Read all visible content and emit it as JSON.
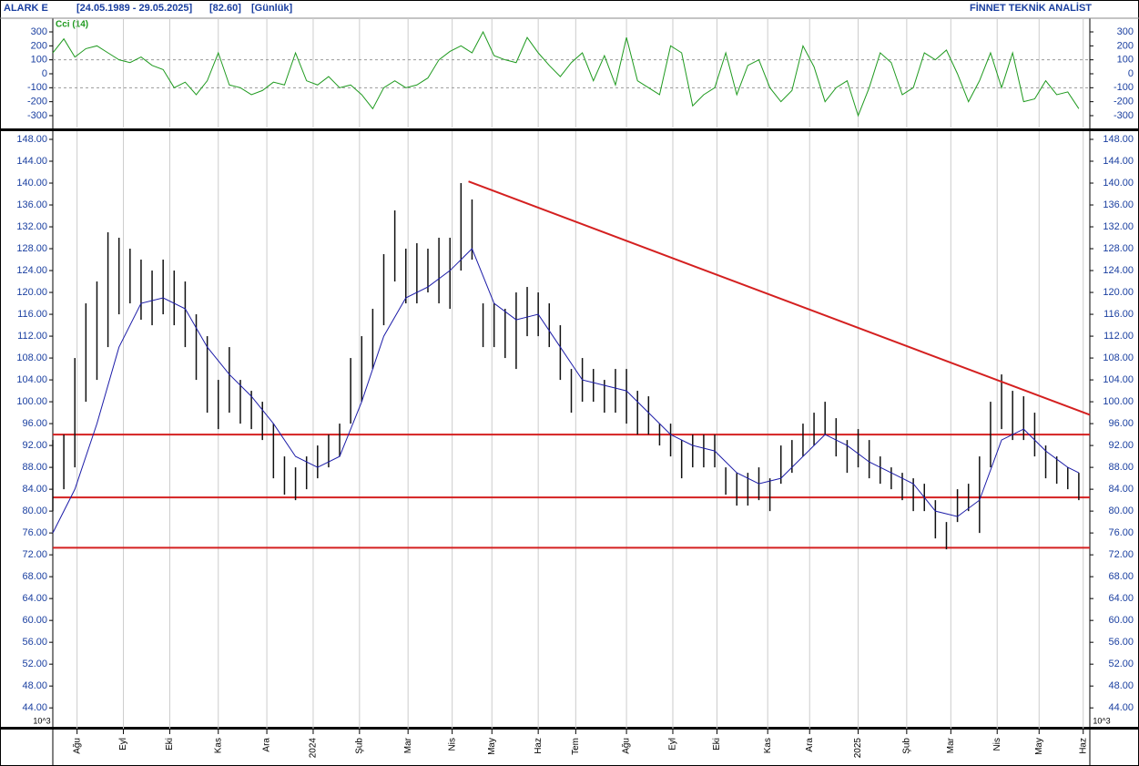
{
  "header": {
    "symbol": "ALARK E",
    "range": "[24.05.1989 - 29.05.2025]",
    "last": "[82.60]",
    "period": "[Günlük]",
    "brand": "FİNNET TEKNİK ANALİST"
  },
  "chart_data": [
    {
      "type": "line",
      "title": "Cci (14)",
      "color": "#1f9a1f",
      "x": [
        0,
        5,
        10,
        15,
        20,
        25,
        30,
        35,
        40,
        45,
        50,
        55,
        60,
        65,
        70,
        75,
        80,
        85,
        90,
        95,
        100,
        105,
        110,
        115,
        120,
        125,
        130,
        135,
        140,
        145,
        150,
        155,
        160,
        165,
        170,
        175,
        180,
        185,
        190,
        195,
        200,
        205,
        210,
        215,
        220,
        225,
        230,
        235,
        240,
        245,
        250,
        255,
        260,
        265,
        270,
        275,
        280,
        285,
        290,
        295,
        300,
        305,
        310,
        315,
        320,
        325,
        330,
        335,
        340,
        345,
        350,
        355,
        360,
        365,
        370,
        375,
        380,
        385,
        390,
        395,
        400,
        405,
        410,
        415,
        420,
        425,
        430,
        435,
        440,
        445,
        450,
        455,
        460,
        465
      ],
      "values": [
        150,
        250,
        120,
        180,
        200,
        150,
        100,
        80,
        120,
        60,
        30,
        -100,
        -60,
        -150,
        -50,
        150,
        -80,
        -100,
        -150,
        -120,
        -60,
        -80,
        150,
        -50,
        -80,
        -20,
        -100,
        -80,
        -150,
        -250,
        -100,
        -50,
        -100,
        -80,
        -30,
        100,
        160,
        200,
        150,
        300,
        130,
        100,
        80,
        260,
        150,
        60,
        -20,
        80,
        150,
        -50,
        130,
        -80,
        260,
        -50,
        -100,
        -150,
        200,
        150,
        -230,
        -150,
        -100,
        150,
        -150,
        60,
        100,
        -100,
        -200,
        -120,
        200,
        50,
        -200,
        -100,
        -50,
        -300,
        -100,
        150,
        80,
        -150,
        -100,
        150,
        100,
        170,
        0,
        -200,
        -50,
        150,
        -100,
        150,
        -200,
        -180,
        -50,
        -150,
        -130,
        -250
      ],
      "xlim": [
        0,
        470
      ],
      "ylim": [
        -385,
        398
      ],
      "yticks": [
        300,
        200,
        100,
        0,
        -100,
        -200,
        -300
      ],
      "dashed_grid": [
        100,
        -100
      ]
    },
    {
      "type": "range_bar",
      "color": "#111111",
      "axis_unit_label": "10^3",
      "x": [
        0,
        5,
        10,
        15,
        20,
        25,
        30,
        35,
        40,
        45,
        50,
        55,
        60,
        65,
        70,
        75,
        80,
        85,
        90,
        95,
        100,
        105,
        110,
        115,
        120,
        125,
        130,
        135,
        140,
        145,
        150,
        155,
        160,
        165,
        170,
        175,
        180,
        185,
        190,
        195,
        200,
        205,
        210,
        215,
        220,
        225,
        230,
        235,
        240,
        245,
        250,
        255,
        260,
        265,
        270,
        275,
        280,
        285,
        290,
        295,
        300,
        305,
        310,
        315,
        320,
        325,
        330,
        335,
        340,
        345,
        350,
        355,
        360,
        365,
        370,
        375,
        380,
        385,
        390,
        395,
        400,
        405,
        410,
        415,
        420,
        425,
        430,
        435,
        440,
        445,
        450,
        455,
        460,
        465
      ],
      "high": [
        93,
        94,
        108,
        118,
        122,
        131,
        130,
        128,
        126,
        124,
        126,
        124,
        122,
        116,
        112,
        104,
        110,
        104,
        102,
        100,
        96,
        90,
        88,
        90,
        92,
        94,
        96,
        108,
        112,
        117,
        127,
        135,
        128,
        129,
        128,
        130,
        130,
        140,
        137,
        118,
        118,
        117,
        120,
        121,
        120,
        118,
        114,
        106,
        108,
        106,
        104,
        106,
        106,
        102,
        101,
        96,
        96,
        93,
        94,
        94,
        94,
        88,
        87,
        87,
        88,
        86,
        92,
        93,
        96,
        98,
        100,
        97,
        93,
        95,
        93,
        90,
        88,
        87,
        86,
        85,
        82,
        78,
        84,
        85,
        90,
        100,
        105,
        102,
        101,
        98,
        92,
        90,
        88,
        87
      ],
      "low": [
        80,
        84,
        88,
        100,
        104,
        110,
        116,
        118,
        115,
        114,
        116,
        114,
        110,
        104,
        98,
        95,
        98,
        96,
        95,
        93,
        86,
        83,
        82,
        84,
        86,
        88,
        90,
        96,
        100,
        106,
        114,
        122,
        118,
        118,
        120,
        118,
        117,
        124,
        126,
        110,
        110,
        108,
        106,
        112,
        112,
        110,
        104,
        98,
        100,
        100,
        98,
        98,
        96,
        94,
        94,
        92,
        90,
        86,
        88,
        88,
        88,
        83,
        81,
        81,
        82,
        80,
        85,
        87,
        90,
        92,
        94,
        90,
        87,
        88,
        86,
        85,
        84,
        82,
        80,
        80,
        75,
        73,
        78,
        80,
        76,
        88,
        95,
        93,
        93,
        90,
        86,
        85,
        84,
        82
      ],
      "moving_average": {
        "color": "#1c1ca8",
        "x": [
          0,
          10,
          20,
          30,
          40,
          50,
          60,
          70,
          80,
          90,
          100,
          110,
          120,
          130,
          140,
          150,
          160,
          170,
          180,
          190,
          200,
          210,
          220,
          230,
          240,
          250,
          260,
          270,
          280,
          290,
          300,
          310,
          320,
          330,
          340,
          350,
          360,
          370,
          380,
          390,
          400,
          410,
          420,
          430,
          440,
          450,
          460,
          465
        ],
        "values": [
          76,
          84,
          96,
          110,
          118,
          119,
          117,
          110,
          105,
          101,
          96,
          90,
          88,
          90,
          100,
          112,
          119,
          121,
          124,
          128,
          118,
          115,
          116,
          110,
          104,
          103,
          102,
          98,
          94,
          92,
          91,
          87,
          85,
          86,
          90,
          94,
          92,
          89,
          87,
          85,
          80,
          79,
          82,
          93,
          95,
          91,
          88,
          87
        ]
      },
      "trendline": {
        "color": "#d42020",
        "x": [
          188.4,
          470
        ],
        "values": [
          140.3,
          97.6
        ]
      },
      "hlines": {
        "color": "#d42020",
        "values": [
          94,
          82.5,
          73.3
        ]
      },
      "xlim": [
        0,
        470
      ],
      "ylim": [
        40.2,
        149.5
      ],
      "yticks": [
        {
          "value": 148,
          "label": "148.00"
        },
        {
          "value": 144,
          "label": "144.00"
        },
        {
          "value": 140,
          "label": "140.00"
        },
        {
          "value": 136,
          "label": "136.00"
        },
        {
          "value": 132,
          "label": "132.00"
        },
        {
          "value": 128,
          "label": "128.00"
        },
        {
          "value": 124,
          "label": "124.00"
        },
        {
          "value": 120,
          "label": "120.00"
        },
        {
          "value": 116,
          "label": "116.00"
        },
        {
          "value": 112,
          "label": "112.00"
        },
        {
          "value": 108,
          "label": "108.00"
        },
        {
          "value": 104,
          "label": "104.00"
        },
        {
          "value": 100,
          "label": "100.00"
        },
        {
          "value": 96,
          "label": "96.00"
        },
        {
          "value": 92,
          "label": "92.00"
        },
        {
          "value": 88,
          "label": "88.00"
        },
        {
          "value": 84,
          "label": "84.00"
        },
        {
          "value": 80,
          "label": "80.00"
        },
        {
          "value": 76,
          "label": "76.00"
        },
        {
          "value": 72,
          "label": "72.00"
        },
        {
          "value": 68,
          "label": "68.00"
        },
        {
          "value": 64,
          "label": "64.00"
        },
        {
          "value": 60,
          "label": "60.00"
        },
        {
          "value": 56,
          "label": "56.00"
        },
        {
          "value": 52,
          "label": "52.00"
        },
        {
          "value": 48,
          "label": "48.00"
        },
        {
          "value": 44,
          "label": "44.00"
        }
      ],
      "xticks": [
        {
          "value": 11,
          "label": "Ağu"
        },
        {
          "value": 32,
          "label": "Eyl"
        },
        {
          "value": 53,
          "label": "Eki"
        },
        {
          "value": 75,
          "label": "Kas"
        },
        {
          "value": 97,
          "label": "Ara"
        },
        {
          "value": 118,
          "label": "2024"
        },
        {
          "value": 139,
          "label": "Şub"
        },
        {
          "value": 161,
          "label": "Mar"
        },
        {
          "value": 181,
          "label": "Nis"
        },
        {
          "value": 199,
          "label": "May"
        },
        {
          "value": 220,
          "label": "Haz"
        },
        {
          "value": 237,
          "label": "Tem"
        },
        {
          "value": 260,
          "label": "Ağu"
        },
        {
          "value": 281,
          "label": "Eyl"
        },
        {
          "value": 301,
          "label": "Eki"
        },
        {
          "value": 324,
          "label": "Kas"
        },
        {
          "value": 343,
          "label": "Ara"
        },
        {
          "value": 365,
          "label": "2025"
        },
        {
          "value": 387,
          "label": "Şub"
        },
        {
          "value": 407,
          "label": "Mar"
        },
        {
          "value": 428,
          "label": "Nis"
        },
        {
          "value": 447,
          "label": "May"
        },
        {
          "value": 467,
          "label": "Haz"
        }
      ]
    }
  ]
}
